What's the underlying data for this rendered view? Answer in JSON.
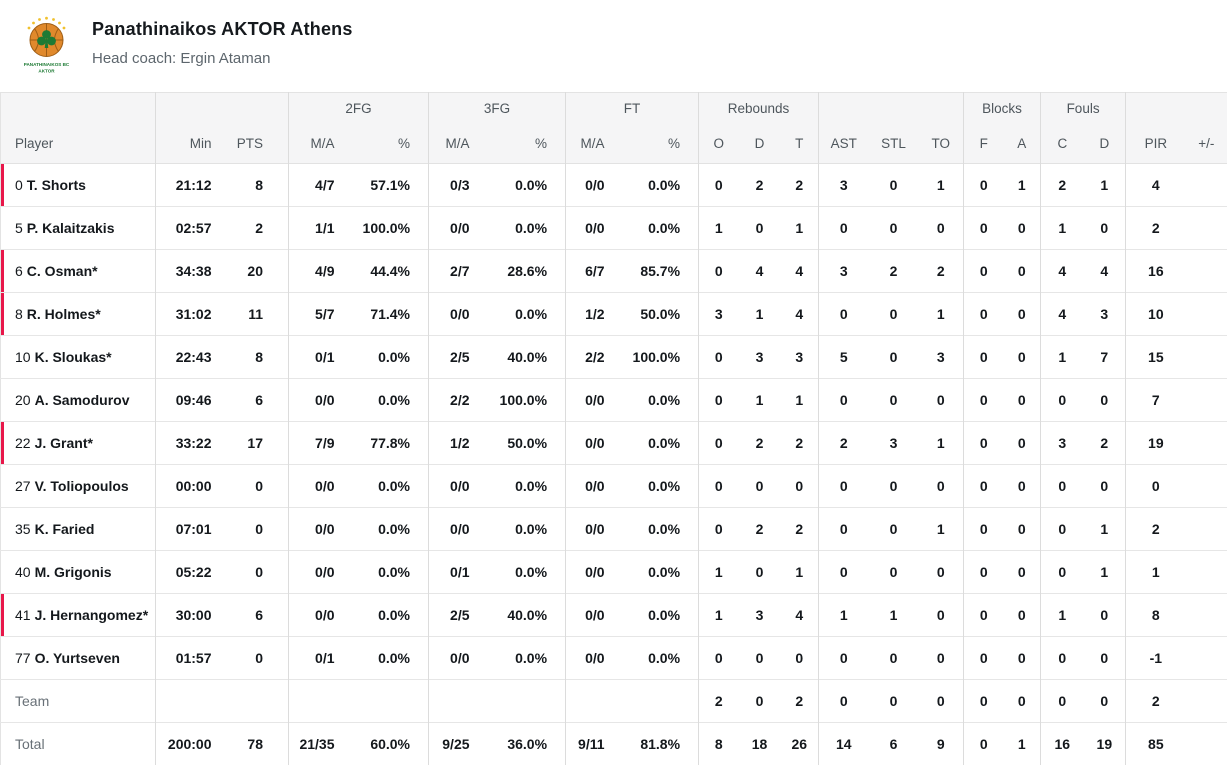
{
  "header": {
    "team_name": "Panathinaikos AKTOR Athens",
    "coach_line": "Head coach: Ergin Ataman",
    "logo": {
      "line1": "PANATHINAIKOS BC",
      "line2": "AKTOR"
    }
  },
  "colors": {
    "accent_red": "#e8174a",
    "logo_orange": "#e0892c",
    "logo_green": "#1d7a34",
    "star_yellow": "#f0c12e"
  },
  "table": {
    "groups": [
      {
        "label": "",
        "span": 1
      },
      {
        "label": "",
        "span": 2
      },
      {
        "label": "2FG",
        "span": 2
      },
      {
        "label": "3FG",
        "span": 2
      },
      {
        "label": "FT",
        "span": 2
      },
      {
        "label": "Rebounds",
        "span": 3
      },
      {
        "label": "",
        "span": 3
      },
      {
        "label": "Blocks",
        "span": 2
      },
      {
        "label": "Fouls",
        "span": 2
      },
      {
        "label": "",
        "span": 2
      }
    ],
    "column_labels": [
      "Player",
      "Min",
      "PTS",
      "M/A",
      "%",
      "M/A",
      "%",
      "M/A",
      "%",
      "O",
      "D",
      "T",
      "AST",
      "STL",
      "TO",
      "F",
      "A",
      "C",
      "D",
      "PIR",
      "+/-"
    ],
    "rows": [
      {
        "type": "player",
        "num": "0",
        "name": "T. Shorts",
        "on_court": true,
        "min": "21:12",
        "pts": "8",
        "fg2_ma": "4/7",
        "fg2_pct": "57.1%",
        "fg3_ma": "0/3",
        "fg3_pct": "0.0%",
        "ft_ma": "0/0",
        "ft_pct": "0.0%",
        "reb_o": "0",
        "reb_d": "2",
        "reb_t": "2",
        "ast": "3",
        "stl": "0",
        "to": "1",
        "blk_f": "0",
        "blk_a": "1",
        "foul_c": "2",
        "foul_d": "1",
        "pir": "4",
        "pm": ""
      },
      {
        "type": "player",
        "num": "5",
        "name": "P. Kalaitzakis",
        "on_court": false,
        "min": "02:57",
        "pts": "2",
        "fg2_ma": "1/1",
        "fg2_pct": "100.0%",
        "fg3_ma": "0/0",
        "fg3_pct": "0.0%",
        "ft_ma": "0/0",
        "ft_pct": "0.0%",
        "reb_o": "1",
        "reb_d": "0",
        "reb_t": "1",
        "ast": "0",
        "stl": "0",
        "to": "0",
        "blk_f": "0",
        "blk_a": "0",
        "foul_c": "1",
        "foul_d": "0",
        "pir": "2",
        "pm": ""
      },
      {
        "type": "player",
        "num": "6",
        "name": "C. Osman*",
        "on_court": true,
        "min": "34:38",
        "pts": "20",
        "fg2_ma": "4/9",
        "fg2_pct": "44.4%",
        "fg3_ma": "2/7",
        "fg3_pct": "28.6%",
        "ft_ma": "6/7",
        "ft_pct": "85.7%",
        "reb_o": "0",
        "reb_d": "4",
        "reb_t": "4",
        "ast": "3",
        "stl": "2",
        "to": "2",
        "blk_f": "0",
        "blk_a": "0",
        "foul_c": "4",
        "foul_d": "4",
        "pir": "16",
        "pm": ""
      },
      {
        "type": "player",
        "num": "8",
        "name": "R. Holmes*",
        "on_court": true,
        "min": "31:02",
        "pts": "11",
        "fg2_ma": "5/7",
        "fg2_pct": "71.4%",
        "fg3_ma": "0/0",
        "fg3_pct": "0.0%",
        "ft_ma": "1/2",
        "ft_pct": "50.0%",
        "reb_o": "3",
        "reb_d": "1",
        "reb_t": "4",
        "ast": "0",
        "stl": "0",
        "to": "1",
        "blk_f": "0",
        "blk_a": "0",
        "foul_c": "4",
        "foul_d": "3",
        "pir": "10",
        "pm": ""
      },
      {
        "type": "player",
        "num": "10",
        "name": "K. Sloukas*",
        "on_court": false,
        "min": "22:43",
        "pts": "8",
        "fg2_ma": "0/1",
        "fg2_pct": "0.0%",
        "fg3_ma": "2/5",
        "fg3_pct": "40.0%",
        "ft_ma": "2/2",
        "ft_pct": "100.0%",
        "reb_o": "0",
        "reb_d": "3",
        "reb_t": "3",
        "ast": "5",
        "stl": "0",
        "to": "3",
        "blk_f": "0",
        "blk_a": "0",
        "foul_c": "1",
        "foul_d": "7",
        "pir": "15",
        "pm": ""
      },
      {
        "type": "player",
        "num": "20",
        "name": "A. Samodurov",
        "on_court": false,
        "min": "09:46",
        "pts": "6",
        "fg2_ma": "0/0",
        "fg2_pct": "0.0%",
        "fg3_ma": "2/2",
        "fg3_pct": "100.0%",
        "ft_ma": "0/0",
        "ft_pct": "0.0%",
        "reb_o": "0",
        "reb_d": "1",
        "reb_t": "1",
        "ast": "0",
        "stl": "0",
        "to": "0",
        "blk_f": "0",
        "blk_a": "0",
        "foul_c": "0",
        "foul_d": "0",
        "pir": "7",
        "pm": ""
      },
      {
        "type": "player",
        "num": "22",
        "name": "J. Grant*",
        "on_court": true,
        "min": "33:22",
        "pts": "17",
        "fg2_ma": "7/9",
        "fg2_pct": "77.8%",
        "fg3_ma": "1/2",
        "fg3_pct": "50.0%",
        "ft_ma": "0/0",
        "ft_pct": "0.0%",
        "reb_o": "0",
        "reb_d": "2",
        "reb_t": "2",
        "ast": "2",
        "stl": "3",
        "to": "1",
        "blk_f": "0",
        "blk_a": "0",
        "foul_c": "3",
        "foul_d": "2",
        "pir": "19",
        "pm": ""
      },
      {
        "type": "player",
        "num": "27",
        "name": "V. Toliopoulos",
        "on_court": false,
        "min": "00:00",
        "pts": "0",
        "fg2_ma": "0/0",
        "fg2_pct": "0.0%",
        "fg3_ma": "0/0",
        "fg3_pct": "0.0%",
        "ft_ma": "0/0",
        "ft_pct": "0.0%",
        "reb_o": "0",
        "reb_d": "0",
        "reb_t": "0",
        "ast": "0",
        "stl": "0",
        "to": "0",
        "blk_f": "0",
        "blk_a": "0",
        "foul_c": "0",
        "foul_d": "0",
        "pir": "0",
        "pm": ""
      },
      {
        "type": "player",
        "num": "35",
        "name": "K. Faried",
        "on_court": false,
        "min": "07:01",
        "pts": "0",
        "fg2_ma": "0/0",
        "fg2_pct": "0.0%",
        "fg3_ma": "0/0",
        "fg3_pct": "0.0%",
        "ft_ma": "0/0",
        "ft_pct": "0.0%",
        "reb_o": "0",
        "reb_d": "2",
        "reb_t": "2",
        "ast": "0",
        "stl": "0",
        "to": "1",
        "blk_f": "0",
        "blk_a": "0",
        "foul_c": "0",
        "foul_d": "1",
        "pir": "2",
        "pm": ""
      },
      {
        "type": "player",
        "num": "40",
        "name": "M. Grigonis",
        "on_court": false,
        "min": "05:22",
        "pts": "0",
        "fg2_ma": "0/0",
        "fg2_pct": "0.0%",
        "fg3_ma": "0/1",
        "fg3_pct": "0.0%",
        "ft_ma": "0/0",
        "ft_pct": "0.0%",
        "reb_o": "1",
        "reb_d": "0",
        "reb_t": "1",
        "ast": "0",
        "stl": "0",
        "to": "0",
        "blk_f": "0",
        "blk_a": "0",
        "foul_c": "0",
        "foul_d": "1",
        "pir": "1",
        "pm": ""
      },
      {
        "type": "player",
        "num": "41",
        "name": "J. Hernangomez*",
        "on_court": true,
        "min": "30:00",
        "pts": "6",
        "fg2_ma": "0/0",
        "fg2_pct": "0.0%",
        "fg3_ma": "2/5",
        "fg3_pct": "40.0%",
        "ft_ma": "0/0",
        "ft_pct": "0.0%",
        "reb_o": "1",
        "reb_d": "3",
        "reb_t": "4",
        "ast": "1",
        "stl": "1",
        "to": "0",
        "blk_f": "0",
        "blk_a": "0",
        "foul_c": "1",
        "foul_d": "0",
        "pir": "8",
        "pm": ""
      },
      {
        "type": "player",
        "num": "77",
        "name": "O. Yurtseven",
        "on_court": false,
        "min": "01:57",
        "pts": "0",
        "fg2_ma": "0/1",
        "fg2_pct": "0.0%",
        "fg3_ma": "0/0",
        "fg3_pct": "0.0%",
        "ft_ma": "0/0",
        "ft_pct": "0.0%",
        "reb_o": "0",
        "reb_d": "0",
        "reb_t": "0",
        "ast": "0",
        "stl": "0",
        "to": "0",
        "blk_f": "0",
        "blk_a": "0",
        "foul_c": "0",
        "foul_d": "0",
        "pir": "-1",
        "pm": ""
      },
      {
        "type": "team",
        "label": "Team",
        "min": "",
        "pts": "",
        "fg2_ma": "",
        "fg2_pct": "",
        "fg3_ma": "",
        "fg3_pct": "",
        "ft_ma": "",
        "ft_pct": "",
        "reb_o": "2",
        "reb_d": "0",
        "reb_t": "2",
        "ast": "0",
        "stl": "0",
        "to": "0",
        "blk_f": "0",
        "blk_a": "0",
        "foul_c": "0",
        "foul_d": "0",
        "pir": "2",
        "pm": ""
      },
      {
        "type": "total",
        "label": "Total",
        "min": "200:00",
        "pts": "78",
        "fg2_ma": "21/35",
        "fg2_pct": "60.0%",
        "fg3_ma": "9/25",
        "fg3_pct": "36.0%",
        "ft_ma": "9/11",
        "ft_pct": "81.8%",
        "reb_o": "8",
        "reb_d": "18",
        "reb_t": "26",
        "ast": "14",
        "stl": "6",
        "to": "9",
        "blk_f": "0",
        "blk_a": "1",
        "foul_c": "16",
        "foul_d": "19",
        "pir": "85",
        "pm": ""
      }
    ]
  }
}
